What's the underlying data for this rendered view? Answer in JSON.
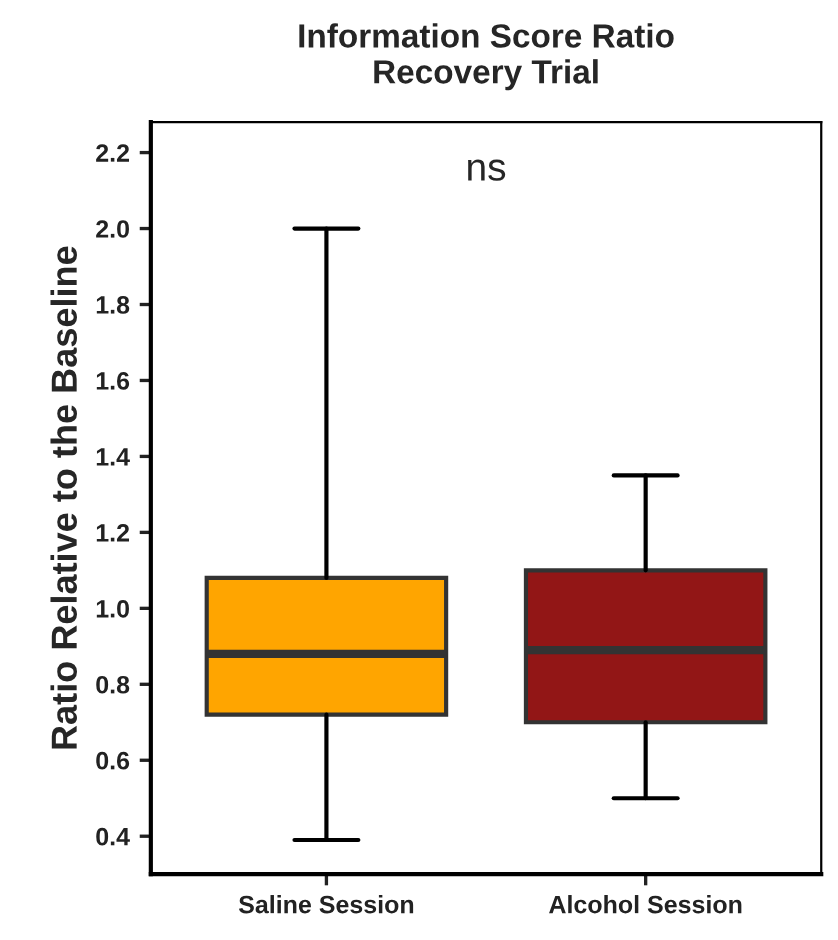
{
  "chart_data": {
    "type": "box",
    "title": "Information Score Ratio\nRecovery Trial",
    "ylabel": "Ratio Relative to the Baseline",
    "categories": [
      "Saline Session",
      "Alcohol Session"
    ],
    "boxes": [
      {
        "low": 0.39,
        "q1": 0.72,
        "median": 0.88,
        "q3": 1.08,
        "high": 2.0
      },
      {
        "low": 0.5,
        "q1": 0.7,
        "median": 0.89,
        "q3": 1.1,
        "high": 1.35
      }
    ],
    "colors": [
      "#ffa500",
      "#921616"
    ],
    "ylim": [
      0.3,
      2.28
    ],
    "yticks": [
      {
        "value": 0.4,
        "label": "0.4"
      },
      {
        "value": 0.6,
        "label": "0.6"
      },
      {
        "value": 0.8,
        "label": "0.8"
      },
      {
        "value": 1.0,
        "label": "1.0"
      },
      {
        "value": 1.2,
        "label": "1.2"
      },
      {
        "value": 1.4,
        "label": "1.4"
      },
      {
        "value": 1.6,
        "label": "1.6"
      },
      {
        "value": 1.8,
        "label": "1.8"
      },
      {
        "value": 2.0,
        "label": "2.0"
      },
      {
        "value": 2.2,
        "label": "2.2"
      }
    ],
    "annotations": [
      "ns"
    ],
    "grid": false,
    "legend": false
  }
}
